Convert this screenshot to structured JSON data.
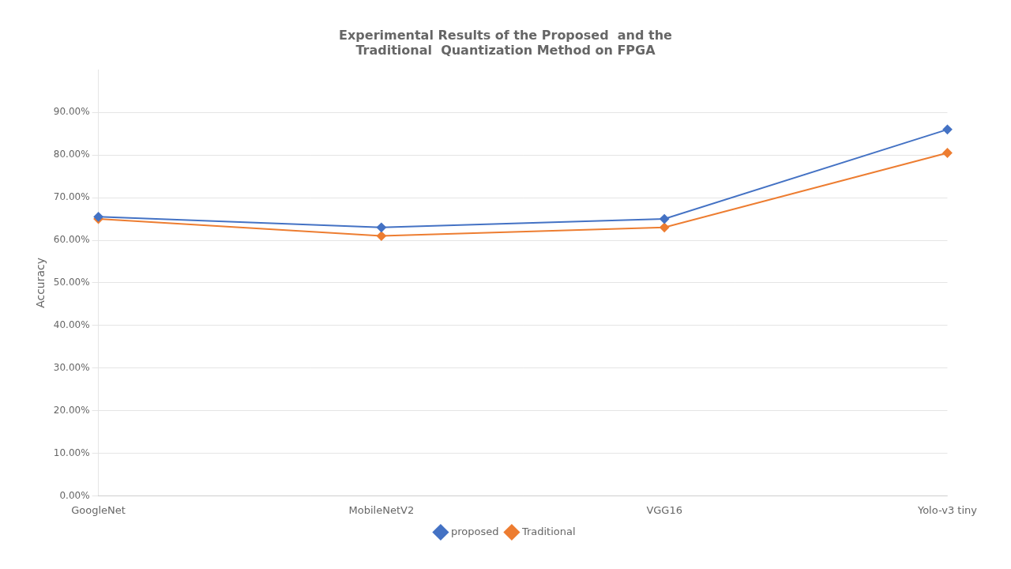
{
  "chart_data": {
    "type": "line",
    "title": "Experimental Results of the Proposed  and the\nTraditional  Quantization Method on FPGA",
    "y_label": "Accuracy",
    "categories": [
      "GoogleNet",
      "MobileNetV2",
      "VGG16",
      "Yolo-v3 tiny"
    ],
    "series": [
      {
        "name": "proposed",
        "color": "#4472c4",
        "marker": "diamond",
        "values": [
          65.5,
          63.0,
          65.0,
          86.0
        ]
      },
      {
        "name": "Traditional",
        "color": "#ed7d31",
        "marker": "diamond",
        "values": [
          65.0,
          61.0,
          63.0,
          80.5
        ]
      }
    ],
    "ylim": [
      0,
      100
    ],
    "yticks": [
      {
        "value": 0,
        "label": "0.00%"
      },
      {
        "value": 10,
        "label": "10.00%"
      },
      {
        "value": 20,
        "label": "20.00%"
      },
      {
        "value": 30,
        "label": "30.00%"
      },
      {
        "value": 40,
        "label": "40.00%"
      },
      {
        "value": 50,
        "label": "50.00%"
      },
      {
        "value": 60,
        "label": "60.00%"
      },
      {
        "value": 70,
        "label": "70.00%"
      },
      {
        "value": 80,
        "label": "80.00%"
      },
      {
        "value": 90,
        "label": "90.00%"
      }
    ],
    "grid": true,
    "legend": "bottom"
  }
}
